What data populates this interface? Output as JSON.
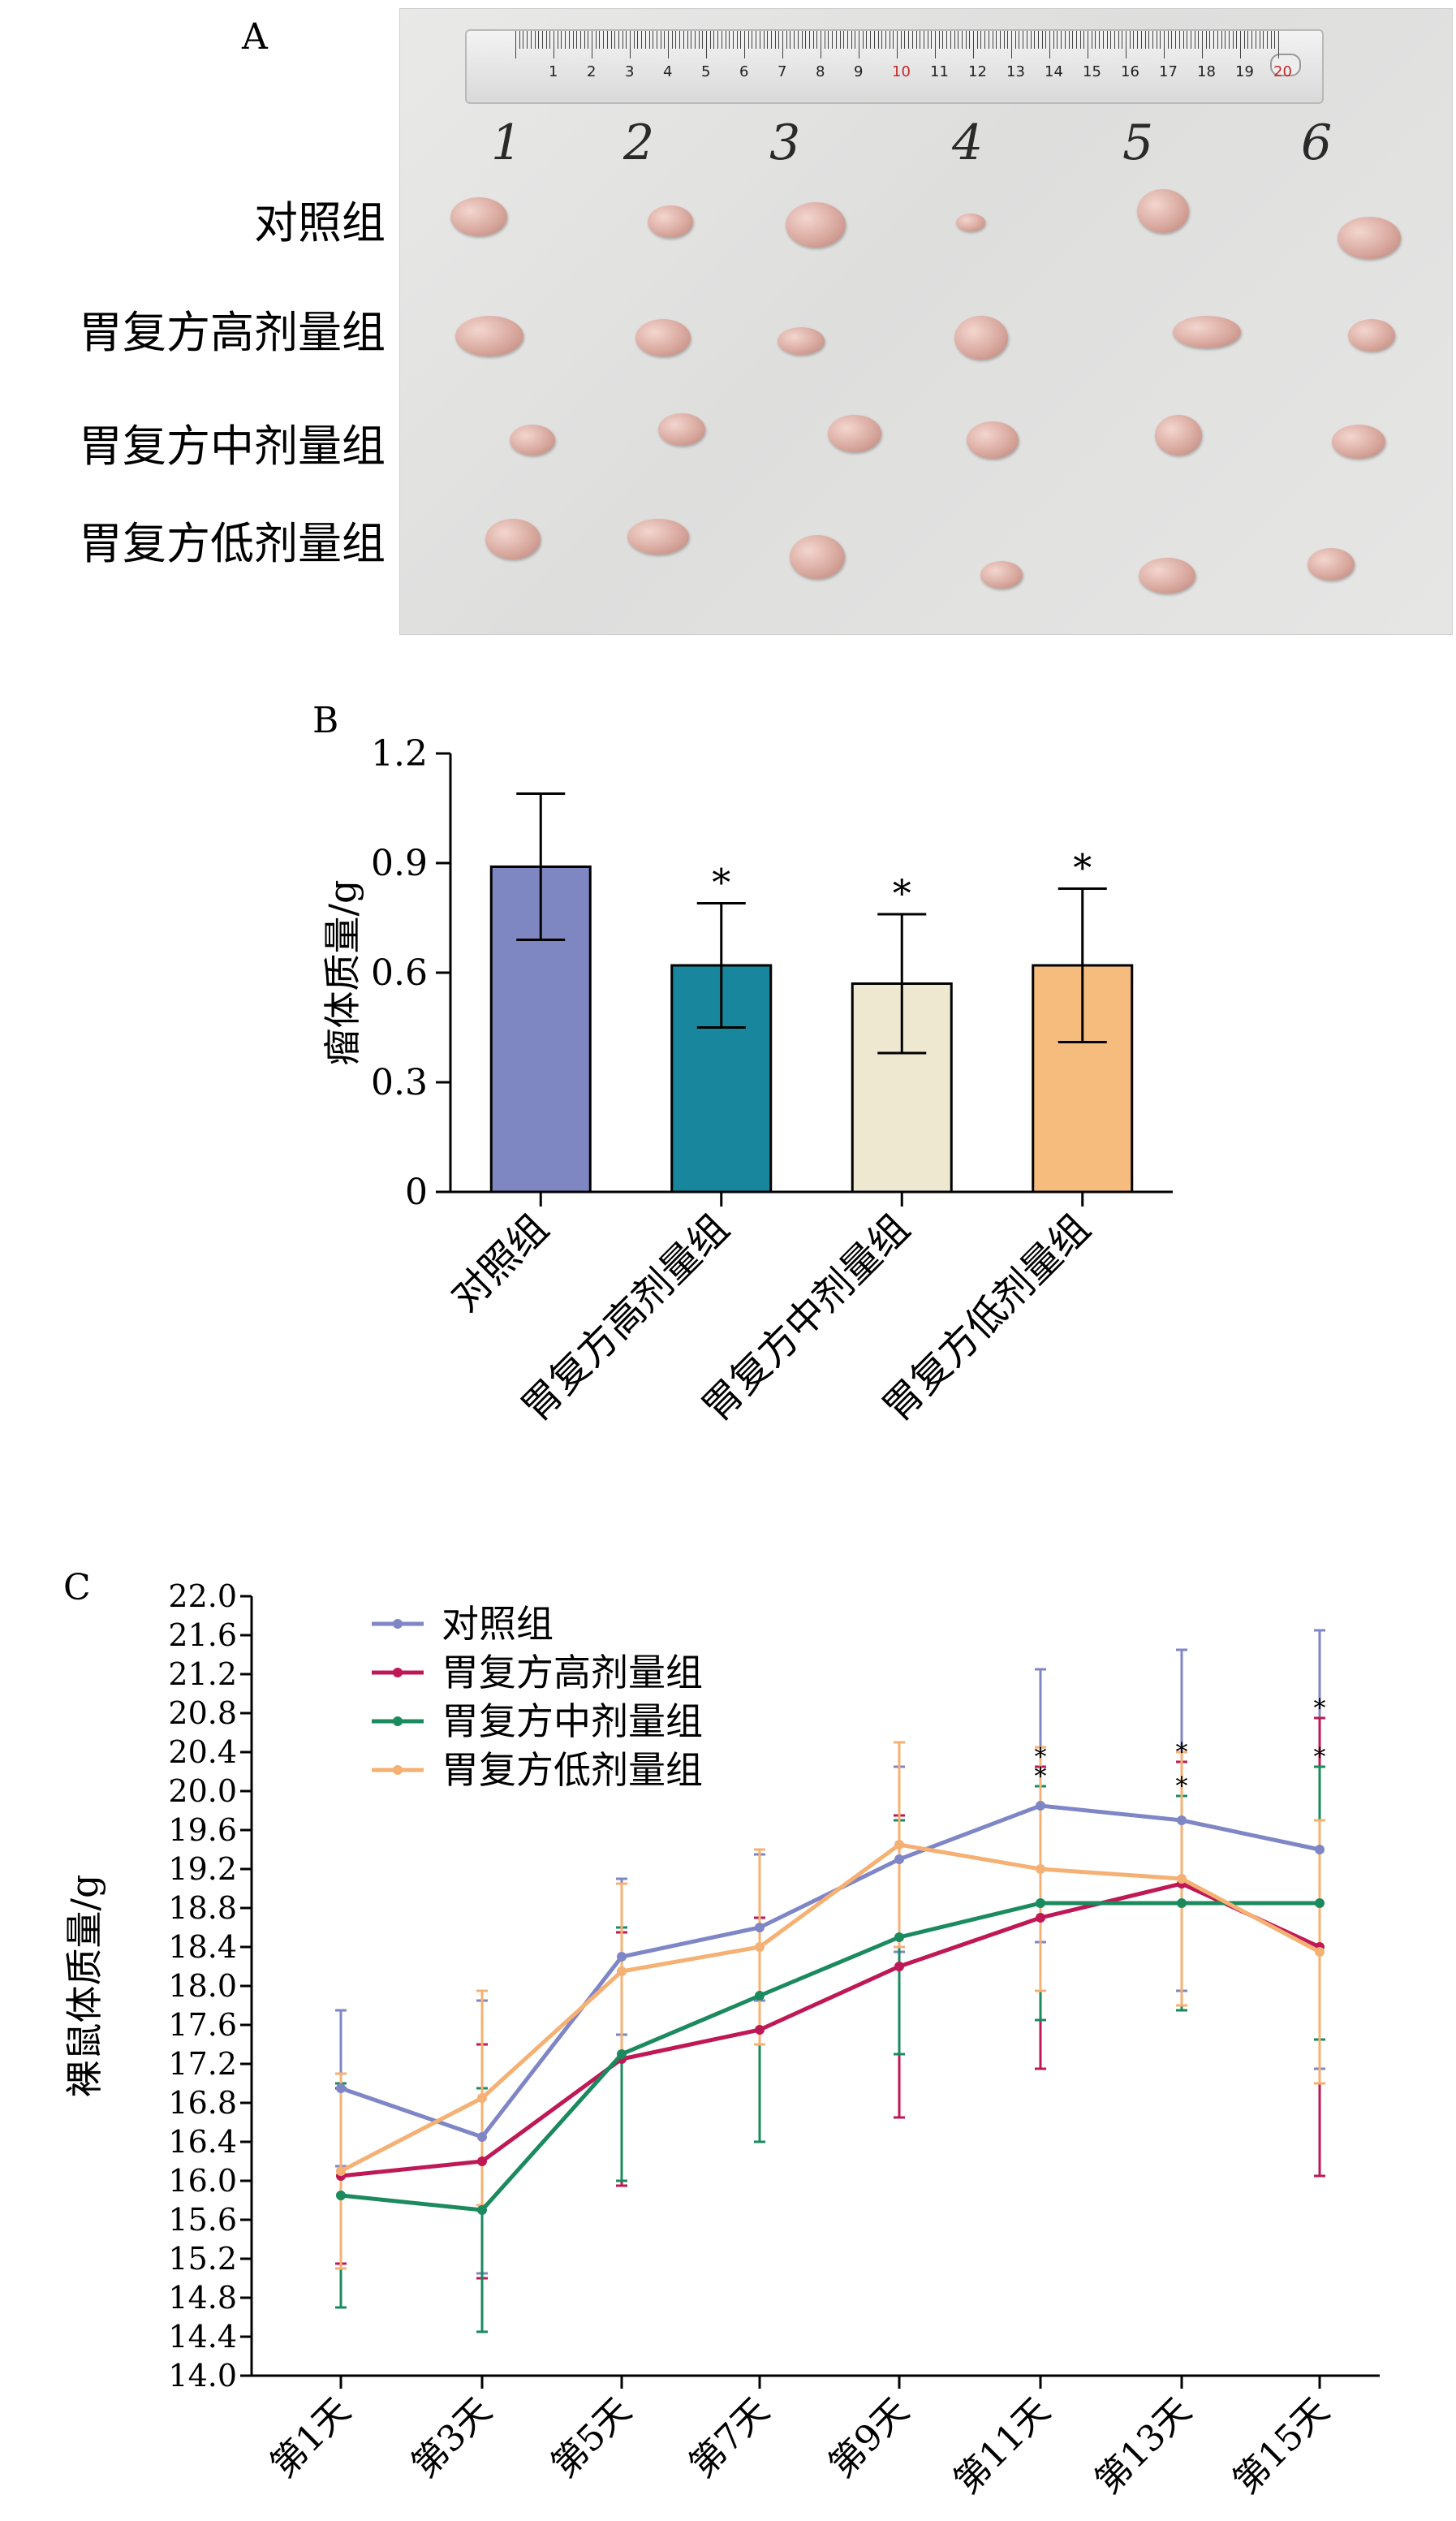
{
  "panel_a": {
    "letter": "A",
    "ruler_numbers": [
      "1",
      "2",
      "3",
      "4",
      "5",
      "6",
      "7",
      "8",
      "9",
      "10",
      "11",
      "12",
      "13",
      "14",
      "15",
      "16",
      "17",
      "18",
      "19",
      "20"
    ],
    "mouse_numbers": [
      "1",
      "2",
      "3",
      "4",
      "5",
      "6"
    ],
    "row_labels": [
      "对照组",
      "胃复方高剂量组",
      "胃复方中剂量组",
      "胃复方低剂量组"
    ]
  },
  "chart_data": [
    {
      "panel": "B",
      "type": "bar",
      "ylabel": "瘤体质量/g",
      "ylim": [
        0,
        1.2
      ],
      "yticks": [
        "0",
        "0.3",
        "0.6",
        "0.9",
        "1.2"
      ],
      "categories": [
        "对照组",
        "胃复方高剂量组",
        "胃复方中剂量组",
        "胃复方低剂量组"
      ],
      "values": [
        0.89,
        0.62,
        0.57,
        0.62
      ],
      "errors": [
        0.2,
        0.17,
        0.19,
        0.21
      ],
      "colors": [
        "#7F87C2",
        "#18879E",
        "#EDE8CF",
        "#F5BC7E"
      ],
      "significance": [
        "",
        "*",
        "*",
        "*"
      ]
    },
    {
      "panel": "C",
      "type": "line",
      "ylabel": "裸鼠体质量/g",
      "ylim": [
        14.0,
        22.0
      ],
      "yticks": [
        "14.0",
        "14.4",
        "14.8",
        "15.2",
        "15.6",
        "16.0",
        "16.4",
        "16.8",
        "17.2",
        "17.6",
        "18.0",
        "18.4",
        "18.8",
        "19.2",
        "19.6",
        "20.0",
        "20.4",
        "20.8",
        "21.2",
        "21.6",
        "22.0"
      ],
      "categories": [
        "第1天",
        "第3天",
        "第5天",
        "第7天",
        "第9天",
        "第11天",
        "第13天",
        "第15天"
      ],
      "legend_position": "top-left",
      "significance_marks": "*",
      "series": [
        {
          "name": "对照组",
          "color": "#7F86C6",
          "values": [
            16.95,
            16.45,
            18.3,
            18.6,
            19.3,
            19.85,
            19.7,
            19.4
          ],
          "errors": [
            0.8,
            1.4,
            0.8,
            0.75,
            0.95,
            1.4,
            1.75,
            2.25
          ]
        },
        {
          "name": "胃复方高剂量组",
          "color": "#BE1956",
          "values": [
            16.05,
            16.2,
            17.25,
            17.55,
            18.2,
            18.7,
            19.05,
            18.4
          ],
          "errors": [
            0.9,
            1.2,
            1.3,
            1.15,
            1.55,
            1.55,
            1.25,
            2.35
          ]
        },
        {
          "name": "胃复方中剂量组",
          "color": "#1B8A5E",
          "values": [
            15.85,
            15.7,
            17.3,
            17.9,
            18.5,
            18.85,
            18.85,
            18.85
          ],
          "errors": [
            1.15,
            1.25,
            1.3,
            1.5,
            1.2,
            1.2,
            1.1,
            1.4
          ]
        },
        {
          "name": "胃复方低剂量组",
          "color": "#F5B073",
          "values": [
            16.1,
            16.85,
            18.15,
            18.4,
            19.45,
            19.2,
            19.1,
            18.35
          ],
          "errors": [
            1.0,
            1.1,
            0.9,
            1.0,
            1.05,
            1.25,
            1.3,
            1.35
          ]
        }
      ],
      "asterisks": [
        [
          5,
          2
        ],
        [
          6,
          2
        ],
        [
          7,
          2
        ]
      ]
    }
  ]
}
